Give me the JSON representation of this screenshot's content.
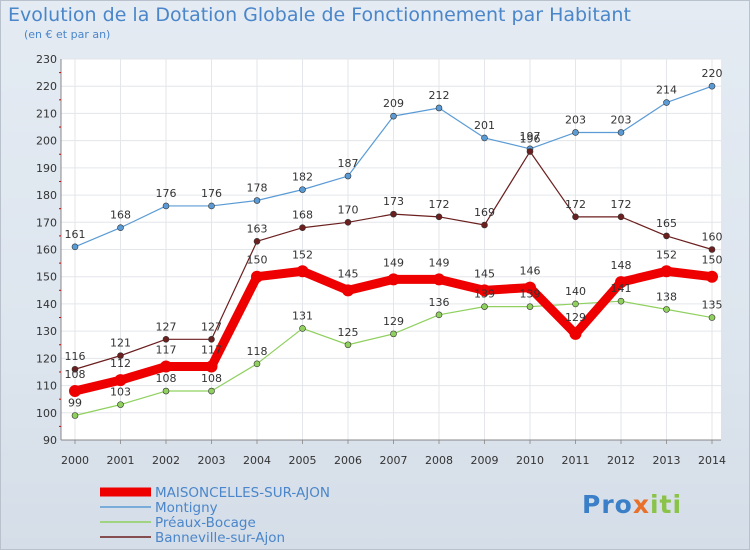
{
  "chart_data": {
    "type": "line",
    "title": "Evolution de la Dotation Globale de Fonctionnement par Habitant",
    "subtitle": "(en € et par an)",
    "x": [
      "2000",
      "2001",
      "2002",
      "2003",
      "2004",
      "2005",
      "2006",
      "2007",
      "2008",
      "2009",
      "2010",
      "2011",
      "2012",
      "2013",
      "2014"
    ],
    "ylim": [
      90,
      230
    ],
    "yticks": [
      90,
      100,
      110,
      120,
      130,
      140,
      150,
      160,
      170,
      180,
      190,
      200,
      210,
      220,
      230
    ],
    "grid": true,
    "series": [
      {
        "name": "Montigny",
        "color": "#5b9bd5",
        "values": [
          161,
          168,
          176,
          176,
          178,
          182,
          187,
          209,
          212,
          201,
          197,
          203,
          203,
          214,
          220
        ]
      },
      {
        "name": "Banneville-sur-Ajon",
        "color": "#6b1f1f",
        "values": [
          116,
          121,
          127,
          127,
          163,
          168,
          170,
          173,
          172,
          169,
          196,
          172,
          172,
          165,
          160
        ]
      },
      {
        "name": "Préaux-Bocage",
        "color": "#8fd05e",
        "values": [
          99,
          103,
          108,
          108,
          118,
          131,
          125,
          129,
          136,
          139,
          139,
          140,
          141,
          138,
          135
        ]
      },
      {
        "name": "MAISONCELLES-SUR-AJON",
        "color": "#ee0000",
        "values": [
          108,
          112,
          117,
          117,
          150,
          152,
          145,
          149,
          149,
          145,
          146,
          129,
          148,
          152,
          150
        ]
      }
    ],
    "legend": [
      "MAISONCELLES-SUR-AJON",
      "Montigny",
      "Préaux-Bocage",
      "Banneville-sur-Ajon"
    ]
  },
  "brand": {
    "part1": "Pro",
    "part2": "x",
    "part3": "iti"
  }
}
